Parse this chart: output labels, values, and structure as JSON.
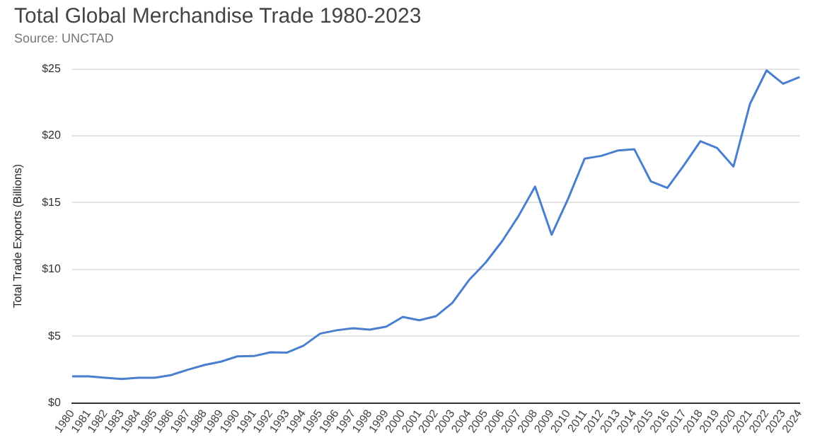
{
  "chart_data": {
    "type": "line",
    "title": "Total Global Merchandise Trade 1980-2023",
    "subtitle": "Source: UNCTAD",
    "ylabel": "Total Trade Exports (Billions)",
    "categories": [
      "1980",
      "1981",
      "1982",
      "1983",
      "1984",
      "1985",
      "1986",
      "1987",
      "1988",
      "1989",
      "1990",
      "1991",
      "1992",
      "1993",
      "1994",
      "1995",
      "1996",
      "1997",
      "1998",
      "1999",
      "2000",
      "2001",
      "2002",
      "2003",
      "2004",
      "2005",
      "2006",
      "2007",
      "2008",
      "2009",
      "2010",
      "2011",
      "2012",
      "2013",
      "2014",
      "2015",
      "2016",
      "2017",
      "2018",
      "2019",
      "2020",
      "2021",
      "2022",
      "2023",
      "2024"
    ],
    "series": [
      {
        "color": "#4a7fcf",
        "values": [
          2.0,
          2.0,
          1.9,
          1.8,
          1.9,
          1.9,
          2.1,
          2.5,
          2.85,
          3.1,
          3.5,
          3.52,
          3.8,
          3.78,
          4.3,
          5.2,
          5.45,
          5.6,
          5.5,
          5.72,
          6.45,
          6.2,
          6.5,
          7.5,
          9.2,
          10.5,
          12.1,
          14.0,
          16.2,
          12.6,
          15.3,
          18.3,
          18.5,
          18.9,
          19.0,
          16.6,
          16.1,
          17.8,
          19.6,
          19.1,
          17.7,
          22.4,
          24.9,
          23.9,
          24.4
        ]
      }
    ],
    "ylim": [
      0,
      25
    ],
    "yticks": [
      {
        "value": 0,
        "label": "$0"
      },
      {
        "value": 5,
        "label": "$5"
      },
      {
        "value": 10,
        "label": "$10"
      },
      {
        "value": 15,
        "label": "$15"
      },
      {
        "value": 20,
        "label": "$20"
      },
      {
        "value": 25,
        "label": "$25"
      }
    ],
    "grid": "y",
    "legend": false,
    "marker": "none",
    "line_style": "solid"
  }
}
